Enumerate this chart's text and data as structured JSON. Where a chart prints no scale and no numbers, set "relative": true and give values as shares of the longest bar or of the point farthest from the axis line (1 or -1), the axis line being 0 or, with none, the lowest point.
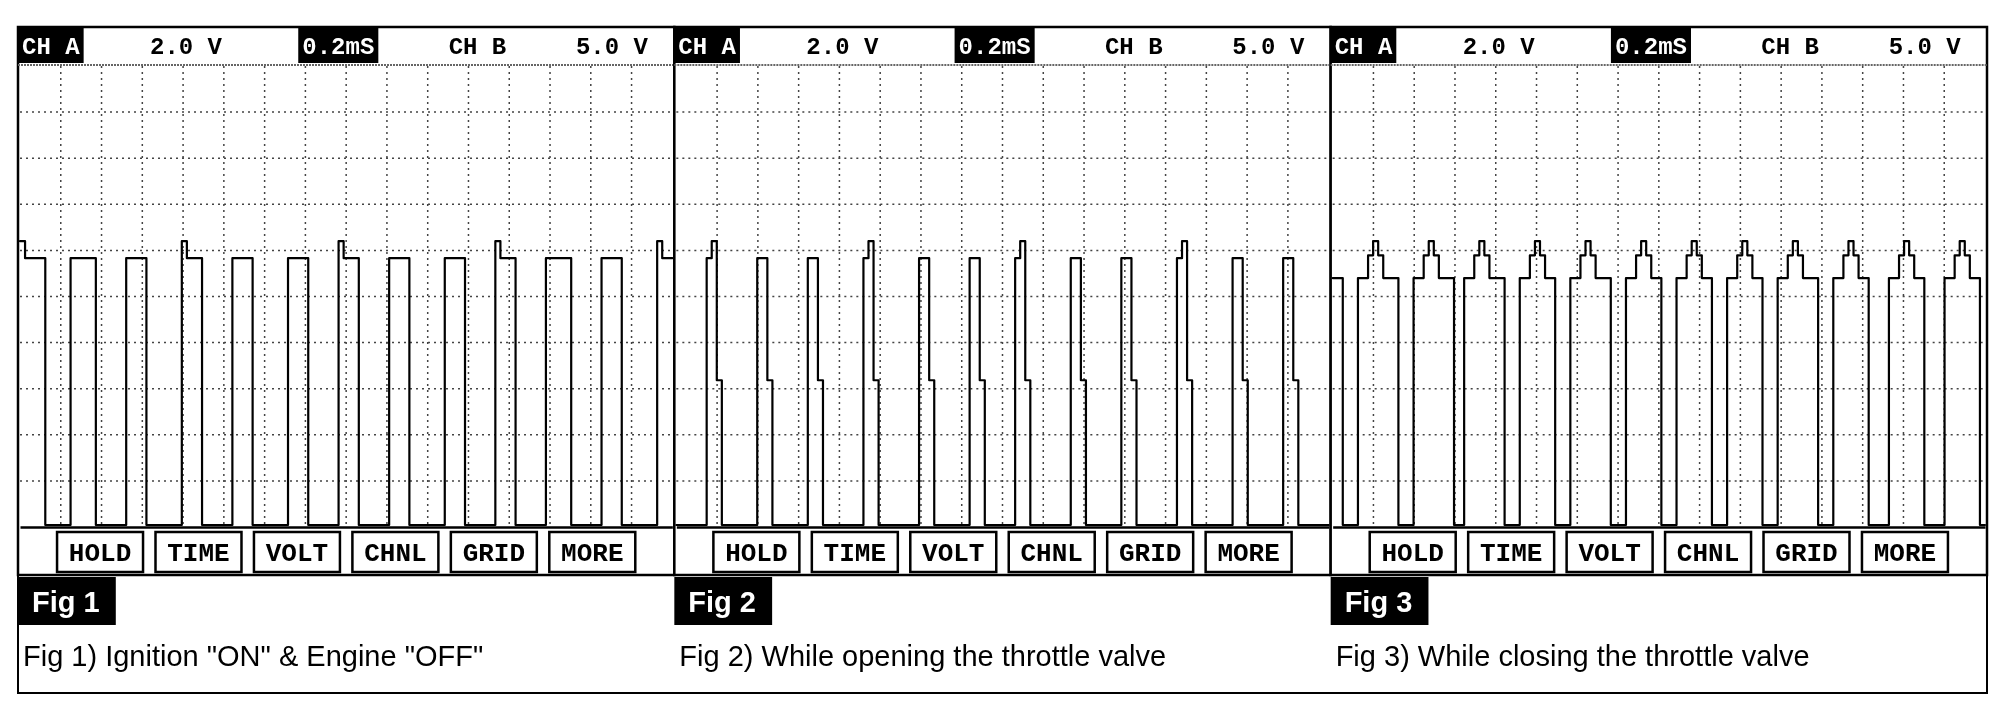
{
  "chart_data": [
    {
      "type": "step",
      "title": "Fig 1",
      "subtitle": "Fig 1) Ignition \"ON\" & Engine \"OFF\"",
      "annotations": [
        "CH A",
        "2.0 V",
        "0.2mS",
        "CH B",
        "5.0 V",
        "HOLD",
        "TIME",
        "VOLT",
        "CHNL",
        "GRID",
        "MORE"
      ],
      "relative": true,
      "grid": true,
      "color": "#000000",
      "categories": [
        null,
        null,
        null,
        null,
        null,
        null,
        null,
        null,
        null,
        null,
        null,
        null,
        null,
        null,
        null,
        null,
        null,
        null,
        null,
        null,
        null,
        null,
        null,
        null,
        null,
        null,
        null,
        null,
        null,
        null,
        null,
        null,
        null,
        null,
        null,
        null,
        null,
        null,
        null,
        null,
        null,
        null,
        null,
        null,
        null,
        null,
        null,
        null,
        null,
        null,
        null,
        null,
        null,
        null,
        null,
        null,
        null,
        null,
        null,
        null,
        null,
        null,
        null,
        null,
        null,
        null,
        null,
        null,
        null,
        null,
        null,
        null,
        null,
        null,
        null,
        null,
        null,
        null,
        null,
        null,
        null,
        null,
        null,
        null,
        null,
        null,
        null,
        null,
        null,
        null,
        null,
        null,
        null,
        null,
        null,
        null,
        null,
        null,
        null,
        null,
        null,
        null,
        null,
        null,
        null,
        null,
        null,
        null,
        null,
        null,
        null,
        null,
        null,
        null,
        null,
        null,
        null,
        null,
        null,
        null,
        null,
        null,
        null,
        null,
        null,
        null,
        null,
        null,
        null,
        null
      ],
      "values": [
        1,
        0.94,
        0.94,
        0.94,
        0.94,
        0,
        0,
        0,
        0,
        0,
        0.94,
        0.94,
        0.94,
        0.94,
        0.94,
        0,
        0,
        0,
        0,
        0,
        0,
        0.94,
        0.94,
        0.94,
        0.94,
        0,
        0,
        0,
        0,
        0,
        0,
        0,
        1,
        0.94,
        0.94,
        0.94,
        0,
        0,
        0,
        0,
        0,
        0,
        0.94,
        0.94,
        0.94,
        0.94,
        0,
        0,
        0,
        0,
        0,
        0,
        0,
        0.94,
        0.94,
        0.94,
        0.94,
        0,
        0,
        0,
        0,
        0,
        0,
        1,
        0.94,
        0.94,
        0.94,
        0,
        0,
        0,
        0,
        0,
        0,
        0.94,
        0.94,
        0.94,
        0.94,
        0,
        0,
        0,
        0,
        0,
        0,
        0,
        0.94,
        0.94,
        0.94,
        0.94,
        0,
        0,
        0,
        0,
        0,
        0,
        1,
        0.94,
        0.94,
        0.94,
        0,
        0,
        0,
        0,
        0,
        0,
        0.94,
        0.94,
        0.94,
        0.94,
        0.94,
        0,
        0,
        0,
        0,
        0,
        0,
        0.94,
        0.94,
        0.94,
        0.94,
        0,
        0,
        0,
        0,
        0,
        0,
        0,
        1,
        0.94,
        0.94,
        0.94
      ]
    },
    {
      "type": "step",
      "title": "Fig 2",
      "subtitle": "Fig 2) While opening the throttle valve",
      "annotations": [
        "CH A",
        "2.0 V",
        "0.2mS",
        "CH B",
        "5.0 V",
        "HOLD",
        "TIME",
        "VOLT",
        "CHNL",
        "GRID",
        "MORE"
      ],
      "relative": true,
      "grid": true,
      "color": "#000000",
      "categories": [
        null,
        null,
        null,
        null,
        null,
        null,
        null,
        null,
        null,
        null,
        null,
        null,
        null,
        null,
        null,
        null,
        null,
        null,
        null,
        null,
        null,
        null,
        null,
        null,
        null,
        null,
        null,
        null,
        null,
        null,
        null,
        null,
        null,
        null,
        null,
        null,
        null,
        null,
        null,
        null,
        null,
        null,
        null,
        null,
        null,
        null,
        null,
        null,
        null,
        null,
        null,
        null,
        null,
        null,
        null,
        null,
        null,
        null,
        null,
        null,
        null,
        null,
        null,
        null,
        null,
        null,
        null,
        null,
        null,
        null,
        null,
        null,
        null,
        null,
        null,
        null,
        null,
        null,
        null,
        null,
        null,
        null,
        null,
        null,
        null,
        null,
        null,
        null,
        null,
        null,
        null,
        null,
        null,
        null,
        null,
        null,
        null,
        null,
        null,
        null,
        null,
        null,
        null,
        null,
        null,
        null,
        null,
        null,
        null,
        null,
        null,
        null,
        null,
        null,
        null,
        null,
        null,
        null,
        null,
        null,
        null,
        null,
        null,
        null,
        null,
        null,
        null,
        null,
        null,
        null
      ],
      "values": [
        0,
        0,
        0,
        0,
        0,
        0,
        0.94,
        1,
        0.51,
        0,
        0,
        0,
        0,
        0,
        0,
        0,
        0.94,
        0.94,
        0.51,
        0,
        0,
        0,
        0,
        0,
        0,
        0,
        0.94,
        0.94,
        0.51,
        0,
        0,
        0,
        0,
        0,
        0,
        0,
        0,
        0.94,
        1,
        0.51,
        0,
        0,
        0,
        0,
        0,
        0,
        0,
        0,
        0.94,
        0.94,
        0.51,
        0,
        0,
        0,
        0,
        0,
        0,
        0,
        0.94,
        0.94,
        0.51,
        0,
        0,
        0,
        0,
        0,
        0,
        0.94,
        1,
        0.51,
        0,
        0,
        0,
        0,
        0,
        0,
        0,
        0,
        0.94,
        0.94,
        0.51,
        0,
        0,
        0,
        0,
        0,
        0,
        0,
        0.94,
        0.94,
        0.51,
        0,
        0,
        0,
        0,
        0,
        0,
        0,
        0,
        0.94,
        1,
        0.51,
        0,
        0,
        0,
        0,
        0,
        0,
        0,
        0,
        0.94,
        0.94,
        0.51,
        0,
        0,
        0,
        0,
        0,
        0,
        0,
        0.94,
        0.94,
        0.51,
        0,
        0,
        0,
        0,
        0,
        0,
        0
      ]
    },
    {
      "type": "step",
      "title": "Fig 3",
      "subtitle": "Fig 3) While closing the throttle valve",
      "annotations": [
        "CH A",
        "2.0 V",
        "0.2mS",
        "CH B",
        "5.0 V",
        "HOLD",
        "TIME",
        "VOLT",
        "CHNL",
        "GRID",
        "MORE"
      ],
      "relative": true,
      "grid": true,
      "color": "#000000",
      "categories": [
        null,
        null,
        null,
        null,
        null,
        null,
        null,
        null,
        null,
        null,
        null,
        null,
        null,
        null,
        null,
        null,
        null,
        null,
        null,
        null,
        null,
        null,
        null,
        null,
        null,
        null,
        null,
        null,
        null,
        null,
        null,
        null,
        null,
        null,
        null,
        null,
        null,
        null,
        null,
        null,
        null,
        null,
        null,
        null,
        null,
        null,
        null,
        null,
        null,
        null,
        null,
        null,
        null,
        null,
        null,
        null,
        null,
        null,
        null,
        null,
        null,
        null,
        null,
        null,
        null,
        null,
        null,
        null,
        null,
        null,
        null,
        null,
        null,
        null,
        null,
        null,
        null,
        null,
        null,
        null,
        null,
        null,
        null,
        null,
        null,
        null,
        null,
        null,
        null,
        null,
        null,
        null,
        null,
        null,
        null,
        null,
        null,
        null,
        null,
        null,
        null,
        null,
        null,
        null,
        null,
        null,
        null,
        null,
        null,
        null,
        null,
        null,
        null,
        null,
        null,
        null,
        null,
        null,
        null,
        null,
        null,
        null,
        null,
        null,
        null,
        null,
        null,
        null,
        null,
        null
      ],
      "values": [
        0.87,
        0.87,
        0,
        0,
        0,
        0.87,
        0.87,
        0.95,
        1,
        0.95,
        0.87,
        0.87,
        0.87,
        0,
        0,
        0,
        0.87,
        0.87,
        0.95,
        1,
        0.95,
        0.87,
        0.87,
        0.87,
        0,
        0,
        0.87,
        0.87,
        0.95,
        1,
        0.95,
        0.87,
        0.87,
        0.87,
        0,
        0,
        0,
        0.87,
        0.87,
        0.95,
        1,
        0.95,
        0.87,
        0.87,
        0,
        0,
        0,
        0.87,
        0.87,
        0.95,
        1,
        0.95,
        0.87,
        0.87,
        0.87,
        0,
        0,
        0,
        0.87,
        0.87,
        0.95,
        1,
        0.95,
        0.87,
        0.87,
        0,
        0,
        0,
        0.87,
        0.87,
        0.95,
        1,
        0.95,
        0.87,
        0.87,
        0,
        0,
        0,
        0.87,
        0.87,
        0.95,
        1,
        0.95,
        0.87,
        0.87,
        0,
        0,
        0,
        0.87,
        0.87,
        0.95,
        1,
        0.95,
        0.87,
        0.87,
        0.87,
        0,
        0,
        0,
        0.87,
        0.87,
        0.95,
        1,
        0.95,
        0.87,
        0.87,
        0,
        0,
        0,
        0,
        0.87,
        0.87,
        0.95,
        1,
        0.95,
        0.87,
        0.87,
        0,
        0,
        0,
        0,
        0.87,
        0.87,
        0.95,
        1,
        0.95,
        0.87,
        0.87,
        0,
        0
      ]
    }
  ]
}
